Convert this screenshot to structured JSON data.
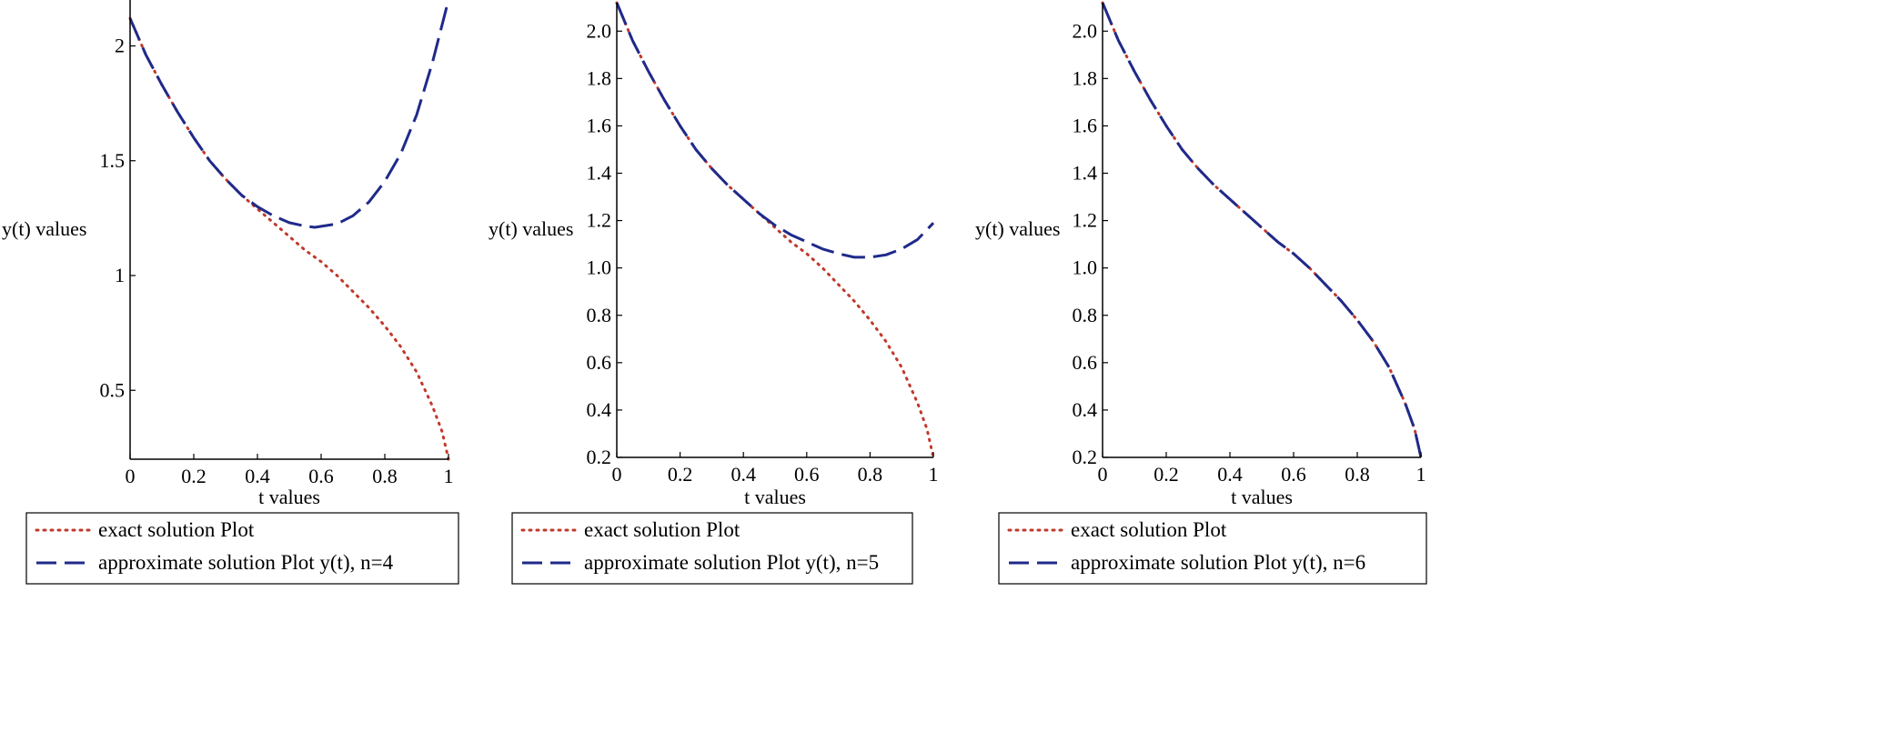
{
  "chart_data": [
    {
      "type": "line",
      "xlabel": "t values",
      "ylabel": "y(t)  values",
      "xlim": [
        0,
        1
      ],
      "ylim": [
        0.2,
        2.2
      ],
      "xticks": [
        0,
        0.2,
        0.4,
        0.6,
        0.8,
        1
      ],
      "xtick_labels": [
        "0",
        "0.2",
        "0.4",
        "0.6",
        "0.8",
        "1"
      ],
      "yticks": [
        0.5,
        1,
        1.5,
        2
      ],
      "ytick_labels": [
        "0.5",
        "1",
        "1.5",
        "2"
      ],
      "legend": [
        "exact solution Plot",
        "approximate solution Plot y(t), n=4"
      ],
      "legend_position": "bottom",
      "series": [
        {
          "name": "exact solution Plot",
          "style": "dotted",
          "color": "#c0392b",
          "x": [
            0,
            0.05,
            0.1,
            0.15,
            0.2,
            0.25,
            0.3,
            0.35,
            0.4,
            0.45,
            0.5,
            0.55,
            0.6,
            0.65,
            0.7,
            0.75,
            0.8,
            0.85,
            0.9,
            0.95,
            0.98,
            1
          ],
          "y": [
            2.12,
            1.96,
            1.83,
            1.71,
            1.6,
            1.5,
            1.42,
            1.35,
            1.29,
            1.23,
            1.17,
            1.11,
            1.06,
            1.0,
            0.93,
            0.86,
            0.78,
            0.69,
            0.58,
            0.43,
            0.32,
            0.2
          ]
        },
        {
          "name": "approximate solution Plot y(t), n=4",
          "style": "dashed",
          "color": "#1f2a8a",
          "x": [
            0,
            0.05,
            0.1,
            0.15,
            0.2,
            0.25,
            0.3,
            0.35,
            0.4,
            0.45,
            0.5,
            0.55,
            0.58,
            0.65,
            0.7,
            0.75,
            0.8,
            0.85,
            0.9,
            0.95,
            1
          ],
          "y": [
            2.12,
            1.96,
            1.83,
            1.71,
            1.6,
            1.5,
            1.42,
            1.35,
            1.3,
            1.26,
            1.23,
            1.215,
            1.21,
            1.225,
            1.26,
            1.32,
            1.41,
            1.53,
            1.7,
            1.93,
            2.24
          ]
        }
      ]
    },
    {
      "type": "line",
      "xlabel": "t values",
      "ylabel": "y(t)  values",
      "xlim": [
        0,
        1
      ],
      "ylim": [
        0.2,
        2.12
      ],
      "xticks": [
        0,
        0.2,
        0.4,
        0.6,
        0.8,
        1
      ],
      "xtick_labels": [
        "0",
        "0.2",
        "0.4",
        "0.6",
        "0.8",
        "1"
      ],
      "yticks": [
        0.2,
        0.4,
        0.6,
        0.8,
        1.0,
        1.2,
        1.4,
        1.6,
        1.8,
        2.0
      ],
      "ytick_labels": [
        "0.2",
        "0.4",
        "0.6",
        "0.8",
        "1.0",
        "1.2",
        "1.4",
        "1.6",
        "1.8",
        "2.0"
      ],
      "legend": [
        "exact solution Plot",
        "approximate solution Plot  y(t), n=5"
      ],
      "legend_position": "bottom",
      "series": [
        {
          "name": "exact solution Plot",
          "style": "dotted",
          "color": "#c0392b",
          "x": [
            0,
            0.05,
            0.1,
            0.15,
            0.2,
            0.25,
            0.3,
            0.35,
            0.4,
            0.45,
            0.5,
            0.55,
            0.6,
            0.65,
            0.7,
            0.75,
            0.8,
            0.85,
            0.9,
            0.95,
            0.98,
            1
          ],
          "y": [
            2.12,
            1.96,
            1.83,
            1.71,
            1.6,
            1.5,
            1.42,
            1.35,
            1.29,
            1.23,
            1.17,
            1.11,
            1.06,
            1.0,
            0.93,
            0.86,
            0.78,
            0.69,
            0.58,
            0.43,
            0.32,
            0.2
          ]
        },
        {
          "name": "approximate solution Plot  y(t), n=5",
          "style": "dashed",
          "color": "#1f2a8a",
          "x": [
            0,
            0.05,
            0.1,
            0.15,
            0.2,
            0.25,
            0.3,
            0.35,
            0.4,
            0.45,
            0.5,
            0.55,
            0.6,
            0.65,
            0.7,
            0.75,
            0.8,
            0.85,
            0.9,
            0.95,
            1
          ],
          "y": [
            2.12,
            1.96,
            1.83,
            1.71,
            1.6,
            1.5,
            1.42,
            1.35,
            1.29,
            1.23,
            1.18,
            1.14,
            1.11,
            1.08,
            1.06,
            1.045,
            1.045,
            1.055,
            1.08,
            1.12,
            1.19
          ]
        }
      ]
    },
    {
      "type": "line",
      "xlabel": "t values",
      "ylabel": "y(t)  values",
      "xlim": [
        0,
        1
      ],
      "ylim": [
        0.2,
        2.12
      ],
      "xticks": [
        0,
        0.2,
        0.4,
        0.6,
        0.8,
        1
      ],
      "xtick_labels": [
        "0",
        "0.2",
        "0.4",
        "0.6",
        "0.8",
        "1"
      ],
      "yticks": [
        0.2,
        0.4,
        0.6,
        0.8,
        1.0,
        1.2,
        1.4,
        1.6,
        1.8,
        2.0
      ],
      "ytick_labels": [
        "0.2",
        "0.4",
        "0.6",
        "0.8",
        "1.0",
        "1.2",
        "1.4",
        "1.6",
        "1.8",
        "2.0"
      ],
      "legend": [
        "exact solution Plot",
        "approximate solution Plot  y(t), n=6"
      ],
      "legend_position": "bottom",
      "series": [
        {
          "name": "exact solution Plot",
          "style": "dotted",
          "color": "#c0392b",
          "x": [
            0,
            0.05,
            0.1,
            0.15,
            0.2,
            0.25,
            0.3,
            0.35,
            0.4,
            0.45,
            0.5,
            0.55,
            0.6,
            0.65,
            0.7,
            0.75,
            0.8,
            0.85,
            0.9,
            0.95,
            0.98,
            1
          ],
          "y": [
            2.12,
            1.96,
            1.83,
            1.71,
            1.6,
            1.5,
            1.42,
            1.35,
            1.29,
            1.23,
            1.17,
            1.11,
            1.06,
            1.0,
            0.93,
            0.86,
            0.78,
            0.69,
            0.58,
            0.43,
            0.32,
            0.2
          ]
        },
        {
          "name": "approximate solution Plot  y(t), n=6",
          "style": "dashed",
          "color": "#1f2a8a",
          "x": [
            0,
            0.05,
            0.1,
            0.15,
            0.2,
            0.25,
            0.3,
            0.35,
            0.4,
            0.45,
            0.5,
            0.55,
            0.6,
            0.65,
            0.7,
            0.75,
            0.8,
            0.85,
            0.9,
            0.95,
            0.98,
            1
          ],
          "y": [
            2.12,
            1.96,
            1.83,
            1.71,
            1.6,
            1.5,
            1.42,
            1.35,
            1.29,
            1.23,
            1.17,
            1.11,
            1.06,
            1.0,
            0.93,
            0.86,
            0.78,
            0.69,
            0.58,
            0.43,
            0.32,
            0.2
          ]
        }
      ]
    }
  ]
}
